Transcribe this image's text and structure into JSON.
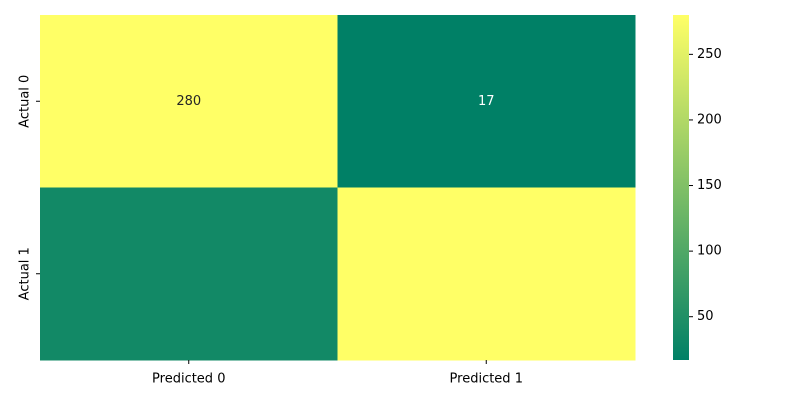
{
  "chart_data": {
    "type": "heatmap",
    "row_labels": [
      "Actual 0",
      "Actual 1"
    ],
    "col_labels": [
      "Predicted 0",
      "Predicted 1"
    ],
    "values": [
      [
        280,
        17
      ],
      [
        36,
        280
      ]
    ],
    "annotations": [
      [
        "280",
        "17"
      ],
      [
        "",
        ""
      ]
    ],
    "colormap": "summer",
    "colorbar": {
      "min": 17,
      "max": 280,
      "ticks": [
        50,
        100,
        150,
        200,
        250
      ],
      "tick_labels": [
        "50",
        "100",
        "150",
        "200",
        "250"
      ]
    },
    "colors": {
      "low": "#008066",
      "high": "#ffff66"
    }
  }
}
